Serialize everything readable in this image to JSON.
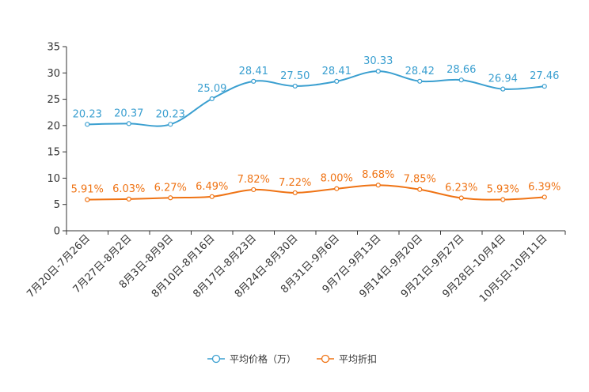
{
  "chart_data": {
    "type": "line",
    "title": "",
    "xlabel": "",
    "ylabel": "",
    "ylim": [
      0,
      35
    ],
    "yticks": [
      0,
      5,
      10,
      15,
      20,
      25,
      30,
      35
    ],
    "grid": false,
    "legend_position": "bottom-center",
    "categories": [
      "7月20日-7月26日",
      "7月27日-8月2日",
      "8月3日-8月9日",
      "8月10日-8月16日",
      "8月17日-8月23日",
      "8月24日-8月30日",
      "8月31日-9月6日",
      "9月7日-9月13日",
      "9月14日-9月20日",
      "9月21日-9月27日",
      "9月28日-10月4日",
      "10月5日-10月11日"
    ],
    "series": [
      {
        "name": "平均价格（万）",
        "color": "#3a9fd0",
        "values": [
          20.23,
          20.37,
          20.23,
          25.09,
          28.41,
          27.5,
          28.41,
          30.33,
          28.42,
          28.66,
          26.94,
          27.46
        ],
        "labels": [
          "20.23",
          "20.37",
          "20.23",
          "25.09",
          "28.41",
          "27.50",
          "28.41",
          "30.33",
          "28.42",
          "28.66",
          "26.94",
          "27.46"
        ]
      },
      {
        "name": "平均折扣",
        "color": "#ef7314",
        "values": [
          5.91,
          6.03,
          6.27,
          6.49,
          7.82,
          7.22,
          8.0,
          8.68,
          7.85,
          6.23,
          5.93,
          6.39
        ],
        "labels": [
          "5.91%",
          "6.03%",
          "6.27%",
          "6.49%",
          "7.82%",
          "7.22%",
          "8.00%",
          "8.68%",
          "7.85%",
          "6.23%",
          "5.93%",
          "6.39%"
        ]
      }
    ]
  }
}
